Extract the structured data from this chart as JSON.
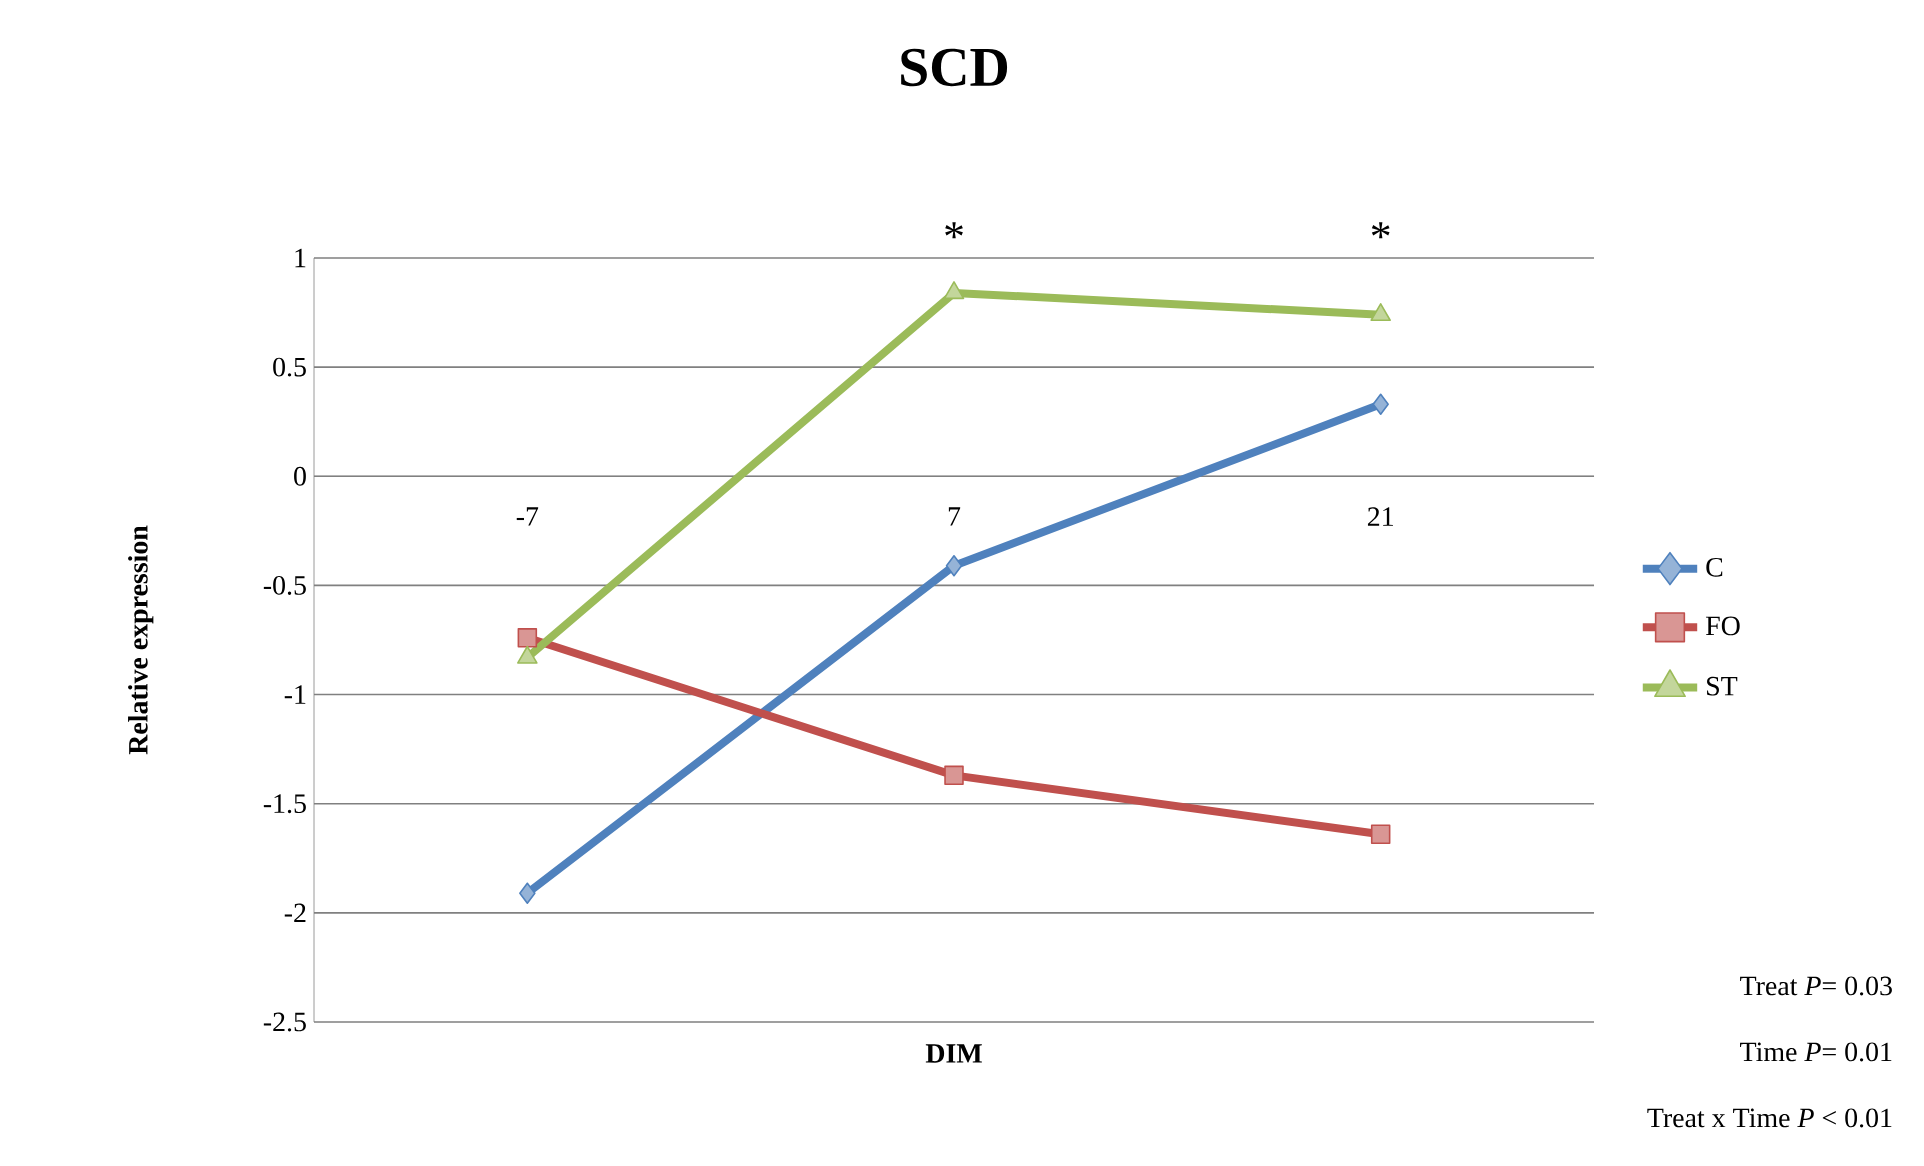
{
  "chart_data": {
    "type": "line",
    "title": "SCD",
    "xlabel": "DIM",
    "ylabel": "Relative expression",
    "categories": [
      "-7",
      "7",
      "21"
    ],
    "series": [
      {
        "name": "C",
        "color": "#4f81bd",
        "marker": "diamond",
        "values": [
          -1.91,
          -0.41,
          0.33
        ]
      },
      {
        "name": "FO",
        "color": "#c0504d",
        "marker": "square",
        "values": [
          -0.74,
          -1.37,
          -1.64
        ]
      },
      {
        "name": "ST",
        "color": "#9bbb59",
        "marker": "triangle",
        "values": [
          -0.83,
          0.84,
          0.74
        ]
      }
    ],
    "ylim": [
      -2.5,
      1
    ],
    "yticks": [
      -2.5,
      -2,
      -1.5,
      -1,
      -0.5,
      0,
      0.5,
      1
    ],
    "grid": "y",
    "legend": "right",
    "line_style": "solid",
    "annotations": [
      "*",
      "*",
      "Treat *P*= 0.03",
      "Time *P*= 0.01",
      "Treat x Time *P* < 0.01"
    ]
  }
}
